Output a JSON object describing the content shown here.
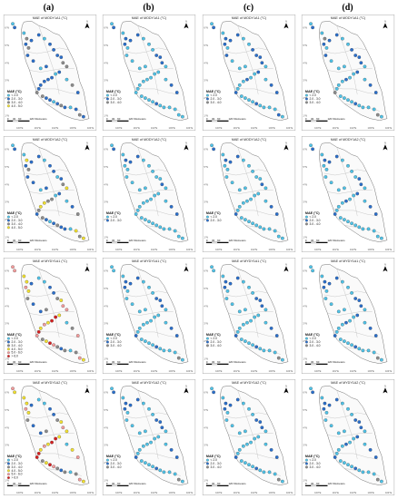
{
  "columns": [
    {
      "label": "(a)"
    },
    {
      "label": "(b)"
    },
    {
      "label": "(c)"
    },
    {
      "label": "(d)"
    }
  ],
  "rows": [
    {
      "title": "MAE of MODY1A1 (°C)"
    },
    {
      "title": "MAE of MODY1A2 (°C)"
    },
    {
      "title": "MAE of MYDY1A1 (°C)"
    },
    {
      "title": "MAE of MYDY1A2 (°C)"
    }
  ],
  "legend": {
    "title": "MAE (°C)",
    "classes": [
      {
        "label": "< 2.0",
        "color": "#4fc3e8"
      },
      {
        "label": "2.0 - 3.0",
        "color": "#2a6fcc"
      },
      {
        "label": "3.0 - 4.0",
        "color": "#8c8c8c"
      },
      {
        "label": "4.0 - 5.0",
        "color": "#f2e130"
      },
      {
        "label": "5.0 - 6.0",
        "color": "#f29b9b"
      },
      {
        "label": "> 6.0",
        "color": "#d62020"
      }
    ],
    "class_counts": [
      [
        4,
        3,
        3,
        3
      ],
      [
        4,
        2,
        2,
        3
      ],
      [
        6,
        3,
        3,
        3
      ],
      [
        6,
        3,
        3,
        3
      ]
    ]
  },
  "scale_bar": {
    "labels": [
      "0",
      "30",
      "60",
      "120 Kilometers"
    ]
  },
  "north_arrow": {
    "label": "N"
  },
  "axis_ticks": {
    "x": [
      "100°E",
      "101°E",
      "102°E",
      "103°E",
      "104°E"
    ],
    "y": [
      "1°N",
      "2°N",
      "3°N",
      "4°N",
      "5°N",
      "6°N"
    ]
  }
}
